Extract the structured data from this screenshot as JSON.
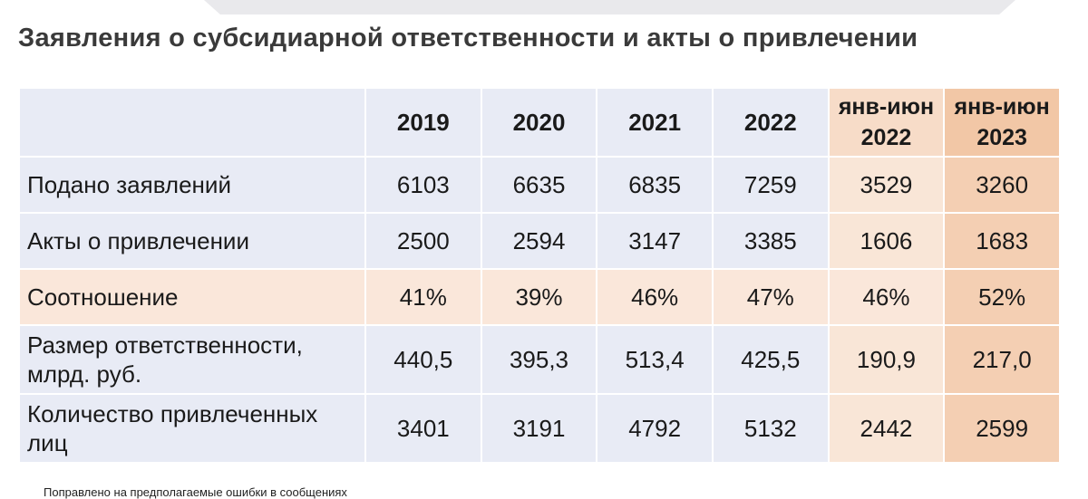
{
  "title": "Заявления о субсидиарной ответственности и акты о привлечении",
  "table": {
    "headers": [
      "",
      "2019",
      "2020",
      "2021",
      "2022",
      "янв-июн\n2022",
      "янв-июн\n2023"
    ],
    "header_2022_h1": "янв-июн",
    "header_2022_h2": "2022",
    "header_2023_h1": "янв-июн",
    "header_2023_h2": "2023",
    "rows": [
      {
        "label": "Подано заявлений",
        "values": [
          "6103",
          "6635",
          "6835",
          "7259",
          "3529",
          "3260"
        ]
      },
      {
        "label": "Акты о привлечении",
        "values": [
          "2500",
          "2594",
          "3147",
          "3385",
          "1606",
          "1683"
        ]
      },
      {
        "label": "Соотношение",
        "values": [
          "41%",
          "39%",
          "46%",
          "47%",
          "46%",
          "52%"
        ]
      },
      {
        "label_line1": "Размер ответственности,",
        "label_line2": "млрд. руб.",
        "values": [
          "440,5",
          "395,3",
          "513,4",
          "425,5",
          "190,9",
          "217,0"
        ]
      },
      {
        "label_line1": "Количество привлеченных",
        "label_line2": "лиц",
        "values": [
          "3401",
          "3191",
          "4792",
          "5132",
          "2442",
          "2599"
        ]
      }
    ]
  },
  "footnote": "Поправлено на предполагаемые ошибки в сообщениях",
  "colors": {
    "cell_bg": "#e8ebf5",
    "highlight_2022": "#f9e6d7",
    "highlight_2023": "#f4cfb3",
    "ratio_row": "#fae7da"
  }
}
